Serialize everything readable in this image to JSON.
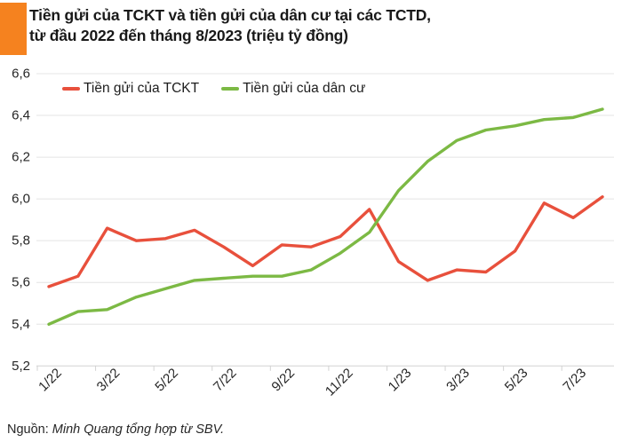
{
  "header": {
    "title_line1": "Tiền gửi của TCKT và tiền gửi của dân cư tại các TCTD,",
    "title_line2": "từ đầu 2022 đến tháng 8/2023 (triệu tỷ đồng)"
  },
  "legend": [
    {
      "label": "Tiền gửi của TCKT",
      "color": "#e8503c"
    },
    {
      "label": "Tiền gửi của dân cư",
      "color": "#7cb944"
    }
  ],
  "source": {
    "prefix": "Nguồn: ",
    "text": "Minh Quang tổng hợp từ SBV."
  },
  "colors": {
    "accent_orange": "#f5821f",
    "series_red": "#e8503c",
    "series_green": "#7cb944",
    "gridline": "#e4e4e4",
    "axis": "#d2d2d2",
    "tick_label": "#262626"
  },
  "chart_data": {
    "type": "line",
    "title": "Tiền gửi của TCKT và tiền gửi của dân cư tại các TCTD, từ đầu 2022 đến tháng 8/2023 (triệu tỷ đồng)",
    "xlabel": "",
    "ylabel": "",
    "x": [
      "1/22",
      "2/22",
      "3/22",
      "4/22",
      "5/22",
      "6/22",
      "7/22",
      "8/22",
      "9/22",
      "10/22",
      "11/22",
      "12/22",
      "1/23",
      "2/23",
      "3/23",
      "4/23",
      "5/23",
      "6/23",
      "7/23",
      "8/23"
    ],
    "series": [
      {
        "name": "Tiền gửi của TCKT",
        "color": "#e8503c",
        "values": [
          5.58,
          5.63,
          5.86,
          5.8,
          5.81,
          5.85,
          5.77,
          5.68,
          5.78,
          5.77,
          5.82,
          5.95,
          5.7,
          5.61,
          5.66,
          5.65,
          5.75,
          5.98,
          5.91,
          6.01
        ]
      },
      {
        "name": "Tiền gửi của dân cư",
        "color": "#7cb944",
        "values": [
          5.4,
          5.46,
          5.47,
          5.53,
          5.57,
          5.61,
          5.62,
          5.63,
          5.63,
          5.66,
          5.74,
          5.84,
          6.04,
          6.18,
          6.28,
          6.33,
          6.35,
          6.38,
          6.39,
          6.43
        ]
      }
    ],
    "ylim": [
      5.2,
      6.6
    ],
    "yticks": [
      6.6,
      6.4,
      6.2,
      6.0,
      5.8,
      5.6,
      5.4,
      5.2
    ],
    "ytick_labels": [
      "6,6",
      "6,4",
      "6,2",
      "6,0",
      "5,8",
      "5,6",
      "5,4",
      "5,2"
    ],
    "xtick_labels": [
      "1/22",
      "3/22",
      "5/22",
      "7/22",
      "9/22",
      "11/22",
      "1/23",
      "3/23",
      "5/23",
      "7/23"
    ],
    "grid": true,
    "legend_position": "top-left-inside"
  }
}
